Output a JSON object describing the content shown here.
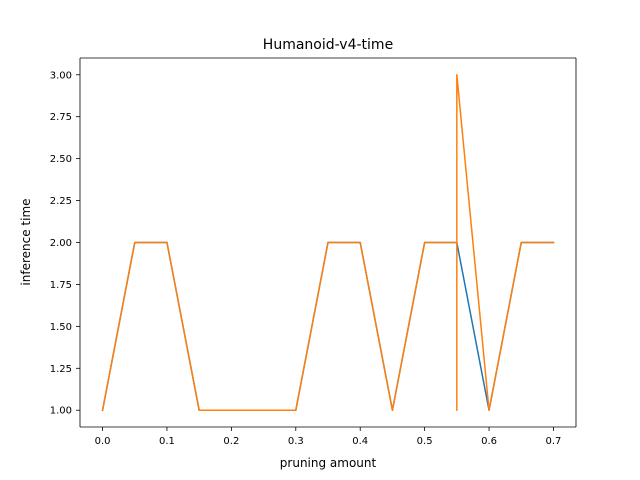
{
  "chart_data": {
    "type": "line",
    "title": "Humanoid-v4-time",
    "xlabel": "pruning amount",
    "ylabel": "inference time",
    "xlim": [
      -0.035,
      0.735
    ],
    "ylim": [
      0.9,
      3.1
    ],
    "xticks": [
      0.0,
      0.1,
      0.2,
      0.3,
      0.4,
      0.5,
      0.6,
      0.7
    ],
    "xtick_labels": [
      "0.0",
      "0.1",
      "0.2",
      "0.3",
      "0.4",
      "0.5",
      "0.6",
      "0.7"
    ],
    "yticks": [
      1.0,
      1.25,
      1.5,
      1.75,
      2.0,
      2.25,
      2.5,
      2.75,
      3.0
    ],
    "ytick_labels": [
      "1.00",
      "1.25",
      "1.50",
      "1.75",
      "2.00",
      "2.25",
      "2.50",
      "2.75",
      "3.00"
    ],
    "grid": false,
    "series": [
      {
        "color": "#1f77b4",
        "x": [
          0.0,
          0.05,
          0.1,
          0.15,
          0.2,
          0.25,
          0.3,
          0.35,
          0.4,
          0.45,
          0.5,
          0.55,
          0.6,
          0.65,
          0.7
        ],
        "y": [
          1,
          2,
          2,
          1,
          1,
          1,
          1,
          2,
          2,
          1,
          2,
          2,
          1,
          2,
          2
        ]
      },
      {
        "color": "#ff7f0e",
        "x": [
          0.0,
          0.05,
          0.1,
          0.15,
          0.2,
          0.25,
          0.3,
          0.35,
          0.4,
          0.45,
          0.5,
          0.55,
          0.55,
          0.55,
          0.6,
          0.65,
          0.7
        ],
        "y": [
          1,
          2,
          2,
          1,
          1,
          1,
          1,
          2,
          2,
          1,
          2,
          2,
          1,
          3,
          1,
          2,
          2
        ]
      }
    ]
  }
}
